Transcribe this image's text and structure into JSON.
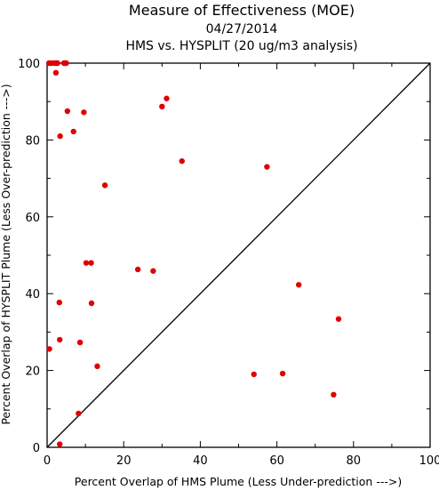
{
  "chart_data": {
    "type": "scatter",
    "title": "Measure of Effectiveness (MOE)",
    "subtitle_date": "04/27/2014",
    "subtitle": "HMS vs. HYSPLIT  (20 ug/m3 analysis)",
    "xlabel": "Percent Overlap of HMS Plume (Less Under-prediction --->)",
    "ylabel": "Percent Overlap of HYSPLIT Plume (Less Over-prediction --->)",
    "xlim": [
      0,
      100
    ],
    "ylim": [
      0,
      100
    ],
    "xticks": [
      "0",
      "20",
      "40",
      "60",
      "80",
      "100"
    ],
    "yticks": [
      "0",
      "20",
      "40",
      "60",
      "80",
      "100"
    ],
    "grid": false,
    "reference_line": "diagonal y = x",
    "point_color": "#e00000",
    "points": [
      {
        "x": 0.5,
        "y": 100
      },
      {
        "x": 1.2,
        "y": 100
      },
      {
        "x": 2.0,
        "y": 100
      },
      {
        "x": 2.4,
        "y": 100
      },
      {
        "x": 2.7,
        "y": 100
      },
      {
        "x": 4.4,
        "y": 100
      },
      {
        "x": 4.7,
        "y": 100
      },
      {
        "x": 5.0,
        "y": 100
      },
      {
        "x": 2.3,
        "y": 97.5
      },
      {
        "x": 5.3,
        "y": 87.5
      },
      {
        "x": 9.6,
        "y": 87.2
      },
      {
        "x": 6.9,
        "y": 82.2
      },
      {
        "x": 3.4,
        "y": 81.0
      },
      {
        "x": 31.2,
        "y": 90.8
      },
      {
        "x": 30.0,
        "y": 88.7
      },
      {
        "x": 35.2,
        "y": 74.5
      },
      {
        "x": 57.4,
        "y": 73.0
      },
      {
        "x": 15.1,
        "y": 68.2
      },
      {
        "x": 10.2,
        "y": 48.0
      },
      {
        "x": 11.5,
        "y": 48.0
      },
      {
        "x": 23.7,
        "y": 46.3
      },
      {
        "x": 27.7,
        "y": 45.9
      },
      {
        "x": 65.7,
        "y": 42.3
      },
      {
        "x": 3.2,
        "y": 37.7
      },
      {
        "x": 11.6,
        "y": 37.5
      },
      {
        "x": 76.1,
        "y": 33.4
      },
      {
        "x": 3.3,
        "y": 28.0
      },
      {
        "x": 8.6,
        "y": 27.3
      },
      {
        "x": 0.6,
        "y": 25.6
      },
      {
        "x": 13.1,
        "y": 21.1
      },
      {
        "x": 54.0,
        "y": 19.0
      },
      {
        "x": 61.5,
        "y": 19.2
      },
      {
        "x": 74.8,
        "y": 13.7
      },
      {
        "x": 8.2,
        "y": 8.8
      },
      {
        "x": 3.3,
        "y": 0.8
      }
    ]
  }
}
